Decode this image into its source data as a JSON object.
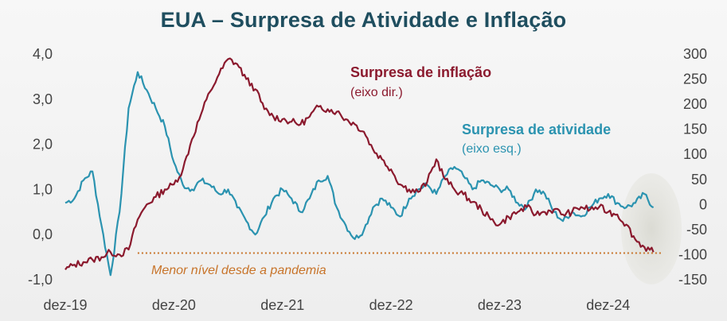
{
  "title": "EUA – Surpresa de Atividade e Inflação",
  "colors": {
    "inflation": "#8b1a2e",
    "activity": "#2b93b0",
    "min_line": "#c8742a",
    "title": "#1f4e5f"
  },
  "chart_data": {
    "type": "line",
    "title": "EUA – Surpresa de Atividade e Inflação",
    "x_ticks": [
      "dez-19",
      "dez-20",
      "dez-21",
      "dez-22",
      "dez-23",
      "dez-24"
    ],
    "x_range": [
      "2019-12",
      "2025-06"
    ],
    "y_left": {
      "ticks": [
        "-1,0",
        "0,0",
        "1,0",
        "2,0",
        "3,0",
        "4,0"
      ],
      "range": [
        -1.0,
        4.0
      ]
    },
    "y_right": {
      "ticks": [
        "-150",
        "-100",
        "-50",
        "0",
        "50",
        "100",
        "150",
        "200",
        "250",
        "300"
      ],
      "range": [
        -150,
        300
      ]
    },
    "series": [
      {
        "name": "Surpresa de inflação",
        "axis_note": "(eixo dir.)",
        "axis": "right",
        "color": "#8b1a2e",
        "points": [
          [
            "2019-12",
            -130
          ],
          [
            "2020-01",
            -120
          ],
          [
            "2020-02",
            -115
          ],
          [
            "2020-03",
            -110
          ],
          [
            "2020-04",
            -105
          ],
          [
            "2020-05",
            -95
          ],
          [
            "2020-06",
            -100
          ],
          [
            "2020-07",
            -90
          ],
          [
            "2020-08",
            -30
          ],
          [
            "2020-09",
            0
          ],
          [
            "2020-10",
            15
          ],
          [
            "2020-11",
            30
          ],
          [
            "2020-12",
            40
          ],
          [
            "2021-01",
            70
          ],
          [
            "2021-02",
            130
          ],
          [
            "2021-03",
            180
          ],
          [
            "2021-04",
            225
          ],
          [
            "2021-05",
            260
          ],
          [
            "2021-06",
            290
          ],
          [
            "2021-07",
            280
          ],
          [
            "2021-08",
            250
          ],
          [
            "2021-09",
            230
          ],
          [
            "2021-10",
            190
          ],
          [
            "2021-11",
            175
          ],
          [
            "2021-12",
            170
          ],
          [
            "2022-01",
            165
          ],
          [
            "2022-02",
            160
          ],
          [
            "2022-03",
            175
          ],
          [
            "2022-04",
            195
          ],
          [
            "2022-05",
            190
          ],
          [
            "2022-06",
            185
          ],
          [
            "2022-07",
            170
          ],
          [
            "2022-08",
            160
          ],
          [
            "2022-09",
            145
          ],
          [
            "2022-10",
            110
          ],
          [
            "2022-11",
            90
          ],
          [
            "2022-12",
            70
          ],
          [
            "2023-01",
            40
          ],
          [
            "2023-02",
            30
          ],
          [
            "2023-03",
            25
          ],
          [
            "2023-04",
            45
          ],
          [
            "2023-05",
            90
          ],
          [
            "2023-06",
            50
          ],
          [
            "2023-07",
            30
          ],
          [
            "2023-08",
            20
          ],
          [
            "2023-09",
            5
          ],
          [
            "2023-10",
            -10
          ],
          [
            "2023-11",
            -30
          ],
          [
            "2023-12",
            -40
          ],
          [
            "2024-01",
            -25
          ],
          [
            "2024-02",
            -15
          ],
          [
            "2024-03",
            -5
          ],
          [
            "2024-04",
            -20
          ],
          [
            "2024-05",
            -15
          ],
          [
            "2024-06",
            -10
          ],
          [
            "2024-07",
            -20
          ],
          [
            "2024-08",
            -15
          ],
          [
            "2024-09",
            -5
          ],
          [
            "2024-10",
            -10
          ],
          [
            "2024-11",
            -5
          ],
          [
            "2024-12",
            -15
          ],
          [
            "2025-01",
            -20
          ],
          [
            "2025-02",
            -40
          ],
          [
            "2025-03",
            -70
          ],
          [
            "2025-04",
            -85
          ],
          [
            "2025-05",
            -95
          ]
        ]
      },
      {
        "name": "Surpresa de atividade",
        "axis_note": "(eixo esq.)",
        "axis": "left",
        "color": "#2b93b0",
        "points": [
          [
            "2019-12",
            0.7
          ],
          [
            "2020-01",
            0.8
          ],
          [
            "2020-02",
            1.2
          ],
          [
            "2020-03",
            1.4
          ],
          [
            "2020-04",
            0.2
          ],
          [
            "2020-05",
            -0.9
          ],
          [
            "2020-06",
            0.5
          ],
          [
            "2020-07",
            2.8
          ],
          [
            "2020-08",
            3.6
          ],
          [
            "2020-09",
            3.2
          ],
          [
            "2020-10",
            2.8
          ],
          [
            "2020-11",
            2.4
          ],
          [
            "2020-12",
            1.6
          ],
          [
            "2021-01",
            1.1
          ],
          [
            "2021-02",
            1.0
          ],
          [
            "2021-03",
            1.2
          ],
          [
            "2021-04",
            1.1
          ],
          [
            "2021-05",
            0.9
          ],
          [
            "2021-06",
            1.0
          ],
          [
            "2021-07",
            0.6
          ],
          [
            "2021-08",
            0.3
          ],
          [
            "2021-09",
            0.0
          ],
          [
            "2021-10",
            0.4
          ],
          [
            "2021-11",
            0.8
          ],
          [
            "2021-12",
            1.0
          ],
          [
            "2022-01",
            0.8
          ],
          [
            "2022-02",
            0.5
          ],
          [
            "2022-03",
            0.8
          ],
          [
            "2022-04",
            1.2
          ],
          [
            "2022-05",
            1.3
          ],
          [
            "2022-06",
            0.6
          ],
          [
            "2022-07",
            0.2
          ],
          [
            "2022-08",
            -0.1
          ],
          [
            "2022-09",
            0.1
          ],
          [
            "2022-10",
            0.6
          ],
          [
            "2022-11",
            0.8
          ],
          [
            "2022-12",
            0.6
          ],
          [
            "2023-01",
            0.4
          ],
          [
            "2023-02",
            0.8
          ],
          [
            "2023-03",
            1.0
          ],
          [
            "2023-04",
            1.1
          ],
          [
            "2023-05",
            0.9
          ],
          [
            "2023-06",
            1.3
          ],
          [
            "2023-07",
            1.5
          ],
          [
            "2023-08",
            1.3
          ],
          [
            "2023-09",
            1.0
          ],
          [
            "2023-10",
            1.2
          ],
          [
            "2023-11",
            1.1
          ],
          [
            "2023-12",
            1.0
          ],
          [
            "2024-01",
            1.0
          ],
          [
            "2024-02",
            0.7
          ],
          [
            "2024-03",
            0.6
          ],
          [
            "2024-04",
            1.0
          ],
          [
            "2024-05",
            0.9
          ],
          [
            "2024-06",
            0.5
          ],
          [
            "2024-07",
            0.3
          ],
          [
            "2024-08",
            0.5
          ],
          [
            "2024-09",
            0.4
          ],
          [
            "2024-10",
            0.6
          ],
          [
            "2024-11",
            0.8
          ],
          [
            "2024-12",
            0.9
          ],
          [
            "2025-01",
            0.7
          ],
          [
            "2025-02",
            0.6
          ],
          [
            "2025-03",
            0.7
          ],
          [
            "2025-04",
            0.9
          ],
          [
            "2025-05",
            0.6
          ]
        ]
      }
    ],
    "annotations": {
      "inflation_label": "Surpresa de inflação",
      "inflation_axis": "(eixo dir.)",
      "activity_label": "Surpresa de atividade",
      "activity_axis": "(eixo esq.)",
      "min_line_label": "Menor nível desde a pandemia",
      "min_line_value_right": -97
    },
    "grid": false,
    "legend": "inline labels"
  }
}
